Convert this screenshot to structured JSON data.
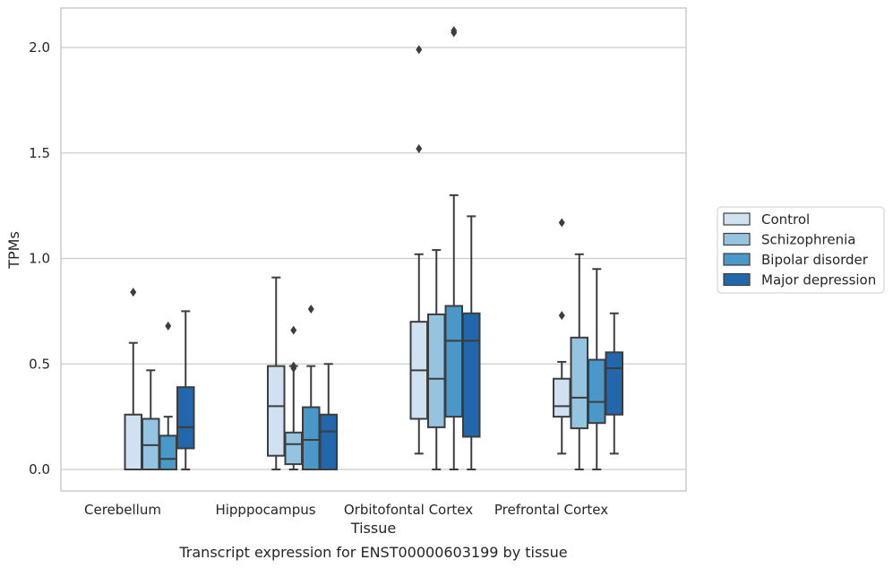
{
  "chart_data": {
    "type": "box",
    "title": "",
    "caption": "Transcript expression for ENST00000603199 by tissue",
    "xlabel": "Tissue",
    "ylabel": "TPMs",
    "ylim": [
      -0.1,
      2.2
    ],
    "yticks": [
      0.0,
      0.5,
      1.0,
      1.5,
      2.0
    ],
    "ytick_labels": [
      "0.0",
      "0.5",
      "1.0",
      "1.5",
      "2.0"
    ],
    "grid": "horizontal",
    "legend_position": "right",
    "categories": [
      "Cerebellum",
      "Hipppocampus",
      "Orbitofontal Cortex",
      "Prefrontal Cortex"
    ],
    "series": [
      {
        "name": "Control",
        "color": "#d0e1f2",
        "boxes": [
          {
            "whisker_low": 0.0,
            "q1": 0.0,
            "median": 0.0,
            "q3": 0.26,
            "whisker_high": 0.6,
            "outliers": [
              0.84
            ]
          },
          {
            "whisker_low": 0.0,
            "q1": 0.065,
            "median": 0.3,
            "q3": 0.49,
            "whisker_high": 0.91,
            "outliers": []
          },
          {
            "whisker_low": 0.075,
            "q1": 0.24,
            "median": 0.47,
            "q3": 0.7,
            "whisker_high": 1.02,
            "outliers": [
              1.52,
              1.99
            ]
          },
          {
            "whisker_low": 0.075,
            "q1": 0.25,
            "median": 0.3,
            "q3": 0.43,
            "whisker_high": 0.51,
            "outliers": [
              0.73,
              1.17
            ]
          }
        ]
      },
      {
        "name": "Schizophrenia",
        "color": "#94c4df",
        "boxes": [
          {
            "whisker_low": 0.0,
            "q1": 0.0,
            "median": 0.115,
            "q3": 0.24,
            "whisker_high": 0.47,
            "outliers": []
          },
          {
            "whisker_low": 0.0,
            "q1": 0.025,
            "median": 0.12,
            "q3": 0.175,
            "whisker_high": 0.49,
            "outliers": [
              0.48,
              0.49,
              0.66
            ]
          },
          {
            "whisker_low": 0.0,
            "q1": 0.2,
            "median": 0.43,
            "q3": 0.735,
            "whisker_high": 1.04,
            "outliers": []
          },
          {
            "whisker_low": 0.0,
            "q1": 0.195,
            "median": 0.34,
            "q3": 0.625,
            "whisker_high": 1.02,
            "outliers": []
          }
        ]
      },
      {
        "name": "Bipolar disorder",
        "color": "#4a98c9",
        "boxes": [
          {
            "whisker_low": 0.0,
            "q1": 0.0,
            "median": 0.05,
            "q3": 0.16,
            "whisker_high": 0.25,
            "outliers": [
              0.68
            ]
          },
          {
            "whisker_low": 0.0,
            "q1": 0.0,
            "median": 0.14,
            "q3": 0.295,
            "whisker_high": 0.49,
            "outliers": [
              0.76
            ]
          },
          {
            "whisker_low": 0.0,
            "q1": 0.25,
            "median": 0.61,
            "q3": 0.775,
            "whisker_high": 1.3,
            "outliers": [
              2.07,
              2.08
            ]
          },
          {
            "whisker_low": 0.0,
            "q1": 0.22,
            "median": 0.32,
            "q3": 0.52,
            "whisker_high": 0.95,
            "outliers": []
          }
        ]
      },
      {
        "name": "Major depression",
        "color": "#2266ac",
        "boxes": [
          {
            "whisker_low": 0.0,
            "q1": 0.1,
            "median": 0.2,
            "q3": 0.39,
            "whisker_high": 0.75,
            "outliers": []
          },
          {
            "whisker_low": 0.0,
            "q1": 0.0,
            "median": 0.18,
            "q3": 0.26,
            "whisker_high": 0.5,
            "outliers": []
          },
          {
            "whisker_low": 0.0,
            "q1": 0.155,
            "median": 0.61,
            "q3": 0.74,
            "whisker_high": 1.2,
            "outliers": []
          },
          {
            "whisker_low": 0.075,
            "q1": 0.26,
            "median": 0.48,
            "q3": 0.555,
            "whisker_high": 0.74,
            "outliers": []
          }
        ]
      }
    ]
  }
}
